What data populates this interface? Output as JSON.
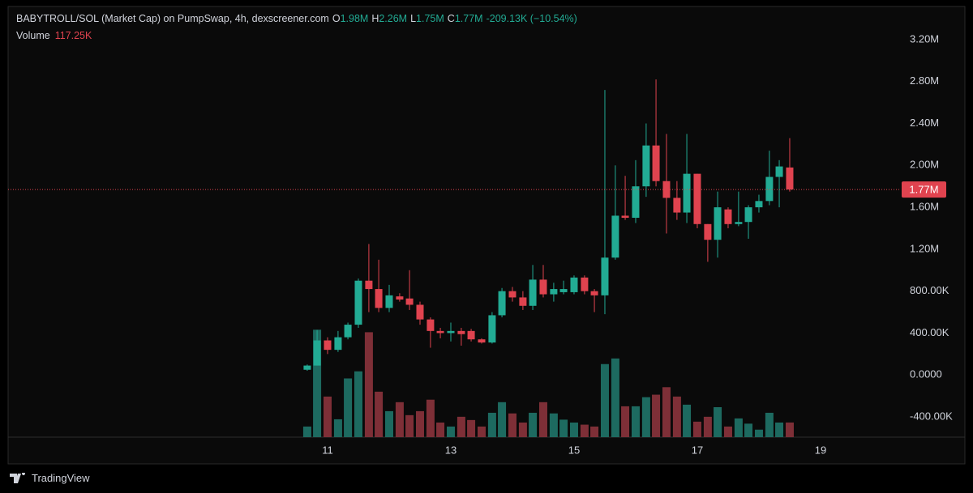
{
  "chart_data": {
    "type": "candlestick",
    "title": "BABYTROLL/SOL (Market Cap) on PumpSwap, 4h, dexscreener.com",
    "ohlc_legend": [
      {
        "key": "O",
        "text": "1.98M"
      },
      {
        "key": "H",
        "text": "2.26M"
      },
      {
        "key": "L",
        "text": "1.75M"
      },
      {
        "key": "C",
        "text": "1.77M"
      }
    ],
    "change_label": "-209.13K (−10.54%)",
    "volume_title": "Volume",
    "volume_value_label": "117.25K",
    "last_price": {
      "value": 1770000,
      "label": "1.77M"
    },
    "brand": "TradingView",
    "x": [
      10.67,
      10.83,
      11,
      11.17,
      11.33,
      11.5,
      11.67,
      11.83,
      12,
      12.17,
      12.33,
      12.5,
      12.67,
      12.83,
      13,
      13.17,
      13.33,
      13.5,
      13.67,
      13.83,
      14,
      14.17,
      14.33,
      14.5,
      14.67,
      14.83,
      15,
      15.17,
      15.33,
      15.5,
      15.67,
      15.83,
      16,
      16.17,
      16.33,
      16.5,
      16.67,
      16.83,
      17,
      17.17,
      17.33,
      17.5,
      17.67,
      17.83,
      18,
      18.17,
      18.33,
      18.5
    ],
    "open": [
      50000,
      90000,
      330000,
      240000,
      360000,
      480000,
      900000,
      820000,
      640000,
      750000,
      730000,
      670000,
      530000,
      420000,
      400000,
      420000,
      420000,
      340000,
      310000,
      570000,
      800000,
      740000,
      660000,
      910000,
      770000,
      790000,
      790000,
      930000,
      800000,
      760000,
      1120000,
      1520000,
      1500000,
      1800000,
      2190000,
      1850000,
      1690000,
      1550000,
      1920000,
      1440000,
      1290000,
      1580000,
      1440000,
      1460000,
      1600000,
      1660000,
      1890000,
      1980000
    ],
    "high": [
      100000,
      430000,
      360000,
      420000,
      500000,
      920000,
      1250000,
      1100000,
      860000,
      780000,
      1000000,
      700000,
      550000,
      450000,
      500000,
      450000,
      440000,
      350000,
      600000,
      830000,
      840000,
      800000,
      1050000,
      1050000,
      880000,
      900000,
      950000,
      950000,
      820000,
      2720000,
      2000000,
      1900000,
      2050000,
      2400000,
      2820000,
      2300000,
      1850000,
      2300000,
      1920000,
      1440000,
      1750000,
      1600000,
      1750000,
      1620000,
      1720000,
      2140000,
      2050000,
      2260000
    ],
    "low": [
      40000,
      90000,
      200000,
      220000,
      340000,
      450000,
      600000,
      600000,
      600000,
      700000,
      620000,
      480000,
      260000,
      350000,
      320000,
      280000,
      320000,
      300000,
      300000,
      550000,
      700000,
      620000,
      620000,
      740000,
      700000,
      770000,
      770000,
      770000,
      600000,
      580000,
      1100000,
      1480000,
      1450000,
      1700000,
      1800000,
      1350000,
      1480000,
      1450000,
      1400000,
      1080000,
      1120000,
      1400000,
      1420000,
      1300000,
      1550000,
      1620000,
      1600000,
      1750000
    ],
    "close": [
      90000,
      330000,
      240000,
      360000,
      480000,
      900000,
      820000,
      640000,
      760000,
      720000,
      670000,
      530000,
      420000,
      400000,
      420000,
      390000,
      340000,
      310000,
      570000,
      800000,
      740000,
      660000,
      910000,
      770000,
      820000,
      820000,
      930000,
      800000,
      760000,
      1120000,
      1520000,
      1500000,
      1800000,
      2190000,
      1850000,
      1690000,
      1550000,
      1920000,
      1440000,
      1290000,
      1600000,
      1440000,
      1460000,
      1600000,
      1660000,
      1890000,
      1990000,
      1770000
    ],
    "volume": [
      85000,
      860000,
      325000,
      143000,
      470000,
      527000,
      840000,
      364000,
      208000,
      280000,
      176000,
      208000,
      300000,
      117000,
      85000,
      163000,
      137000,
      85000,
      195000,
      280000,
      190000,
      117000,
      195000,
      280000,
      190000,
      140000,
      117000,
      100000,
      85000,
      585000,
      630000,
      247000,
      247000,
      320000,
      340000,
      400000,
      325000,
      260000,
      124000,
      163000,
      240000,
      85000,
      150000,
      108000,
      60000,
      195000,
      117000,
      117250
    ],
    "xlim": [
      5.684,
      20.29
    ],
    "xticks": [
      11,
      13,
      15,
      17,
      19
    ],
    "ylim": [
      -593000,
      3578000
    ],
    "yticks": [
      {
        "value": 3200000,
        "label": "3.20M"
      },
      {
        "value": 2800000,
        "label": "2.80M"
      },
      {
        "value": 2400000,
        "label": "2.40M"
      },
      {
        "value": 2000000,
        "label": "2.00M"
      },
      {
        "value": 1600000,
        "label": "1.60M"
      },
      {
        "value": 1200000,
        "label": "1.20M"
      },
      {
        "value": 800000,
        "label": "800.00K"
      },
      {
        "value": 400000,
        "label": "400.00K"
      },
      {
        "value": 0,
        "label": "0.0000"
      },
      {
        "value": -400000,
        "label": "-400.00K"
      }
    ],
    "volume_ylim": [
      0,
      3500000
    ],
    "grid": true,
    "up_color": "#22ab94",
    "down_color": "#e0434f",
    "volume_up_color": "#1d6a60",
    "volume_down_color": "#7e2f37"
  }
}
